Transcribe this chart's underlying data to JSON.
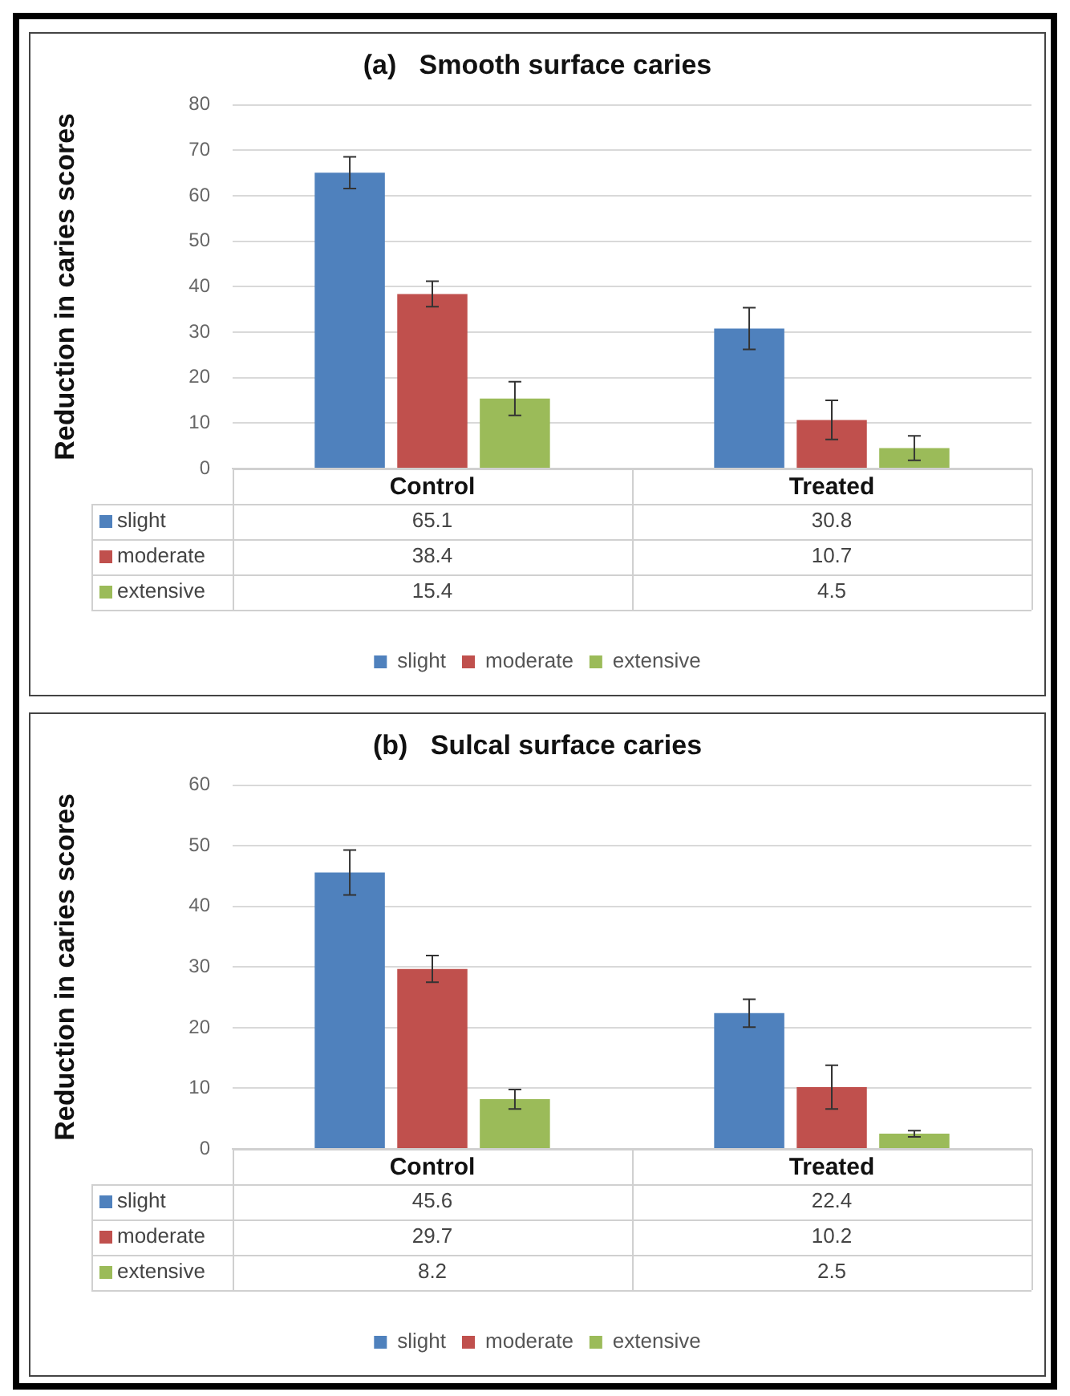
{
  "chart_data": [
    {
      "type": "bar",
      "title": "(a)   Smooth surface caries",
      "ylabel": "Reduction in caries scores",
      "categories": [
        "Control",
        "Treated"
      ],
      "series": [
        {
          "name": "slight",
          "color": "#4f81bd",
          "values": [
            65.1,
            30.8
          ],
          "errors": [
            3.5,
            4.6
          ]
        },
        {
          "name": "moderate",
          "color": "#c0504d",
          "values": [
            38.4,
            10.7
          ],
          "errors": [
            2.8,
            4.3
          ]
        },
        {
          "name": "extensive",
          "color": "#9bbb59",
          "values": [
            15.4,
            4.5
          ],
          "errors": [
            3.7,
            2.7
          ]
        }
      ],
      "ylim": [
        0,
        80
      ],
      "yticks": [
        0,
        10,
        20,
        30,
        40,
        50,
        60,
        70,
        80
      ],
      "grid": "y",
      "legend": "bottom",
      "data_labels": true
    },
    {
      "type": "bar",
      "title": "(b)   Sulcal surface caries",
      "ylabel": "Reduction in caries scores",
      "categories": [
        "Control",
        "Treated"
      ],
      "series": [
        {
          "name": "slight",
          "color": "#4f81bd",
          "values": [
            45.6,
            22.4
          ],
          "errors": [
            3.7,
            2.3
          ]
        },
        {
          "name": "moderate",
          "color": "#c0504d",
          "values": [
            29.7,
            10.2
          ],
          "errors": [
            2.2,
            3.6
          ]
        },
        {
          "name": "extensive",
          "color": "#9bbb59",
          "values": [
            8.2,
            2.5
          ],
          "errors": [
            1.6,
            0.5
          ]
        }
      ],
      "ylim": [
        0,
        60
      ],
      "yticks": [
        0,
        10,
        20,
        30,
        40,
        50,
        60
      ],
      "grid": "y",
      "legend": "bottom",
      "data_labels": true
    }
  ]
}
